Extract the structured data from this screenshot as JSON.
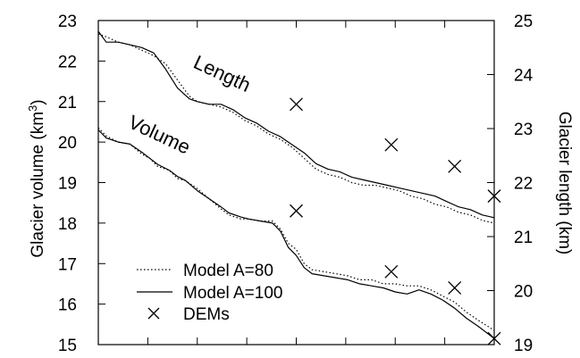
{
  "chart_data": {
    "type": "line",
    "title": "",
    "ylabel_left": "Glacier volume (km3)",
    "ylabel_left_main": "Glacier volume (km",
    "ylabel_left_sup": "3",
    "ylabel_left_close": ")",
    "ylabel_right": "Glacier length (km)",
    "xlabel": "",
    "ylim_left": [
      15,
      23
    ],
    "ylim_right": [
      19,
      25
    ],
    "yticks_left": [
      "15",
      "16",
      "17",
      "18",
      "19",
      "20",
      "21",
      "22",
      "23"
    ],
    "yticks_right": [
      "19",
      "20",
      "21",
      "22",
      "23",
      "24",
      "25"
    ],
    "x_range": [
      0,
      1
    ],
    "x_ticks_count": 9,
    "grid": false,
    "legend_position": "bottom-left",
    "annotations": [
      {
        "text": "Length",
        "series_group": "length"
      },
      {
        "text": "Volume",
        "series_group": "volume"
      }
    ],
    "series": [
      {
        "name": "Model A=80",
        "style": "dotted",
        "axis": "left",
        "group": "volume",
        "x": [
          0.0,
          0.02,
          0.05,
          0.08,
          0.11,
          0.13,
          0.15,
          0.18,
          0.2,
          0.22,
          0.25,
          0.28,
          0.31,
          0.33,
          0.36,
          0.38,
          0.41,
          0.44,
          0.46,
          0.48,
          0.5,
          0.52,
          0.54,
          0.57,
          0.6,
          0.63,
          0.66,
          0.69,
          0.72,
          0.75,
          0.78,
          0.81,
          0.84,
          0.87,
          0.9,
          0.93,
          0.96,
          1.0
        ],
        "values": [
          20.35,
          20.15,
          20.0,
          19.95,
          19.7,
          19.6,
          19.4,
          19.3,
          19.1,
          19.05,
          18.85,
          18.6,
          18.35,
          18.2,
          18.1,
          18.1,
          18.05,
          18.05,
          17.85,
          17.5,
          17.35,
          17.0,
          16.85,
          16.8,
          16.75,
          16.7,
          16.6,
          16.6,
          16.5,
          16.5,
          16.45,
          16.45,
          16.35,
          16.2,
          16.05,
          15.8,
          15.6,
          15.35
        ]
      },
      {
        "name": "Model A=100",
        "style": "solid",
        "axis": "left",
        "group": "volume",
        "x": [
          0.0,
          0.02,
          0.05,
          0.08,
          0.11,
          0.13,
          0.15,
          0.18,
          0.2,
          0.22,
          0.25,
          0.28,
          0.31,
          0.33,
          0.36,
          0.38,
          0.41,
          0.44,
          0.46,
          0.48,
          0.5,
          0.52,
          0.54,
          0.57,
          0.6,
          0.63,
          0.66,
          0.69,
          0.72,
          0.75,
          0.78,
          0.81,
          0.84,
          0.87,
          0.9,
          0.93,
          0.96,
          1.0
        ],
        "values": [
          20.3,
          20.1,
          20.0,
          19.95,
          19.75,
          19.6,
          19.45,
          19.3,
          19.15,
          19.05,
          18.8,
          18.6,
          18.4,
          18.25,
          18.15,
          18.1,
          18.05,
          18.0,
          17.8,
          17.4,
          17.2,
          16.9,
          16.75,
          16.7,
          16.65,
          16.6,
          16.5,
          16.45,
          16.4,
          16.3,
          16.25,
          16.35,
          16.25,
          16.1,
          15.9,
          15.65,
          15.45,
          15.15
        ]
      },
      {
        "name": "Model A=80",
        "style": "dotted",
        "axis": "right",
        "group": "length",
        "x": [
          0.0,
          0.02,
          0.05,
          0.08,
          0.11,
          0.14,
          0.17,
          0.2,
          0.23,
          0.25,
          0.28,
          0.31,
          0.34,
          0.37,
          0.4,
          0.43,
          0.46,
          0.49,
          0.52,
          0.55,
          0.58,
          0.61,
          0.64,
          0.67,
          0.7,
          0.73,
          0.76,
          0.79,
          0.82,
          0.85,
          0.88,
          0.91,
          0.94,
          0.97,
          1.0
        ],
        "values": [
          24.75,
          24.7,
          24.6,
          24.55,
          24.45,
          24.35,
          24.2,
          23.9,
          23.6,
          23.5,
          23.45,
          23.4,
          23.3,
          23.15,
          23.05,
          22.9,
          22.8,
          22.65,
          22.45,
          22.25,
          22.15,
          22.1,
          22.0,
          21.95,
          21.95,
          21.9,
          21.85,
          21.75,
          21.7,
          21.6,
          21.55,
          21.45,
          21.4,
          21.3,
          21.25
        ]
      },
      {
        "name": "Model A=100",
        "style": "solid",
        "axis": "right",
        "group": "length",
        "x": [
          0.0,
          0.02,
          0.05,
          0.08,
          0.11,
          0.14,
          0.17,
          0.2,
          0.23,
          0.25,
          0.28,
          0.31,
          0.34,
          0.37,
          0.4,
          0.43,
          0.46,
          0.49,
          0.52,
          0.55,
          0.58,
          0.61,
          0.64,
          0.67,
          0.7,
          0.73,
          0.76,
          0.79,
          0.82,
          0.85,
          0.88,
          0.91,
          0.94,
          0.97,
          1.0
        ],
        "values": [
          24.8,
          24.6,
          24.6,
          24.55,
          24.5,
          24.4,
          24.1,
          23.75,
          23.55,
          23.5,
          23.45,
          23.45,
          23.35,
          23.2,
          23.1,
          22.95,
          22.85,
          22.7,
          22.55,
          22.35,
          22.25,
          22.2,
          22.1,
          22.05,
          22.0,
          21.95,
          21.9,
          21.85,
          21.8,
          21.75,
          21.65,
          21.55,
          21.5,
          21.4,
          21.35
        ]
      },
      {
        "name": "DEMs",
        "style": "marker-x",
        "axis": "left",
        "group": "volume",
        "x": [
          0.5,
          0.74,
          0.9,
          1.0
        ],
        "values": [
          18.3,
          16.8,
          16.4,
          15.15
        ]
      },
      {
        "name": "DEMs",
        "style": "marker-x",
        "axis": "right",
        "group": "length",
        "x": [
          0.5,
          0.74,
          0.9,
          1.0
        ],
        "values": [
          23.45,
          22.7,
          22.3,
          21.75
        ]
      }
    ],
    "legend": [
      {
        "label": "Model A=80",
        "style": "dotted"
      },
      {
        "label": "Model A=100",
        "style": "solid"
      },
      {
        "label": "DEMs",
        "style": "marker-x"
      }
    ]
  }
}
